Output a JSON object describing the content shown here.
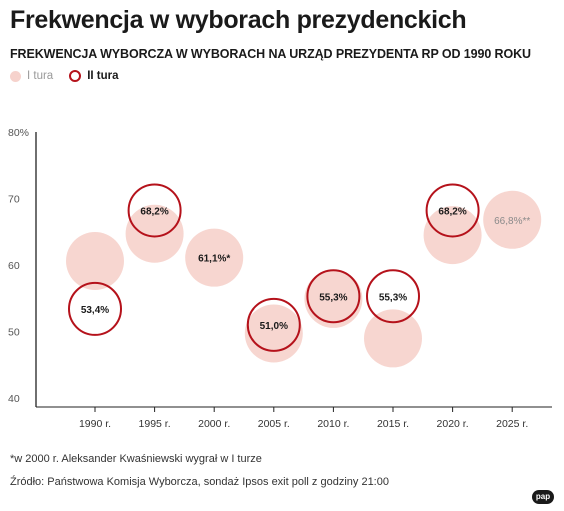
{
  "title": "Frekwencja w wyborach prezydenckich",
  "subtitle": "FREKWENCJA WYBORCZA W WYBORACH NA URZĄD PREZYDENTA RP OD 1990 ROKU",
  "legend": {
    "round1": "I tura",
    "round2": "II tura"
  },
  "footnote": "*w 2000 r. Aleksander Kwaśniewski wygrał w I turze",
  "source": "Źródło: Państwowa Komisja Wyborcza, sondaż Ipsos exit poll z godziny 21:00",
  "logo_text": "pap",
  "colors": {
    "round1_fill": "#f6d2cc",
    "round2_stroke": "#b5121b",
    "axis": "#222222",
    "text": "#1a1a1a",
    "muted": "#9a9a9a"
  },
  "chart_data": {
    "type": "scatter",
    "title": "Frekwencja w wyborach prezydenckich",
    "subtitle": "FREKWENCJA WYBORCZA W WYBORACH NA URZĄD PREZYDENTA RP OD 1990 ROKU",
    "x_ticks": [
      "1990 r.",
      "1995 r.",
      "2000 r.",
      "2005 r.",
      "2010 r.",
      "2015 r.",
      "2020 r.",
      "2025 r."
    ],
    "y_ticks": [
      "80%",
      "70",
      "60",
      "50",
      "40"
    ],
    "ylim": [
      40,
      80
    ],
    "grid": false,
    "legend_position": "top-left",
    "series": [
      {
        "name": "I tura",
        "points": [
          {
            "x": 1990,
            "y": 60.6,
            "label": ""
          },
          {
            "x": 1995,
            "y": 64.7,
            "label": ""
          },
          {
            "x": 2000,
            "y": 61.1,
            "label": "61,1%*"
          },
          {
            "x": 2005,
            "y": 49.7,
            "label": ""
          },
          {
            "x": 2010,
            "y": 54.9,
            "label": ""
          },
          {
            "x": 2015,
            "y": 48.96,
            "label": ""
          },
          {
            "x": 2020,
            "y": 64.5,
            "label": ""
          },
          {
            "x": 2025,
            "y": 66.8,
            "label": "66,8%**"
          }
        ]
      },
      {
        "name": "II tura",
        "points": [
          {
            "x": 1990,
            "y": 53.4,
            "label": "53,4%"
          },
          {
            "x": 1995,
            "y": 68.2,
            "label": "68,2%"
          },
          {
            "x": 2005,
            "y": 51.0,
            "label": "51,0%"
          },
          {
            "x": 2010,
            "y": 55.3,
            "label": "55,3%"
          },
          {
            "x": 2015,
            "y": 55.3,
            "label": "55,3%"
          },
          {
            "x": 2020,
            "y": 68.2,
            "label": "68,2%"
          }
        ]
      }
    ]
  }
}
